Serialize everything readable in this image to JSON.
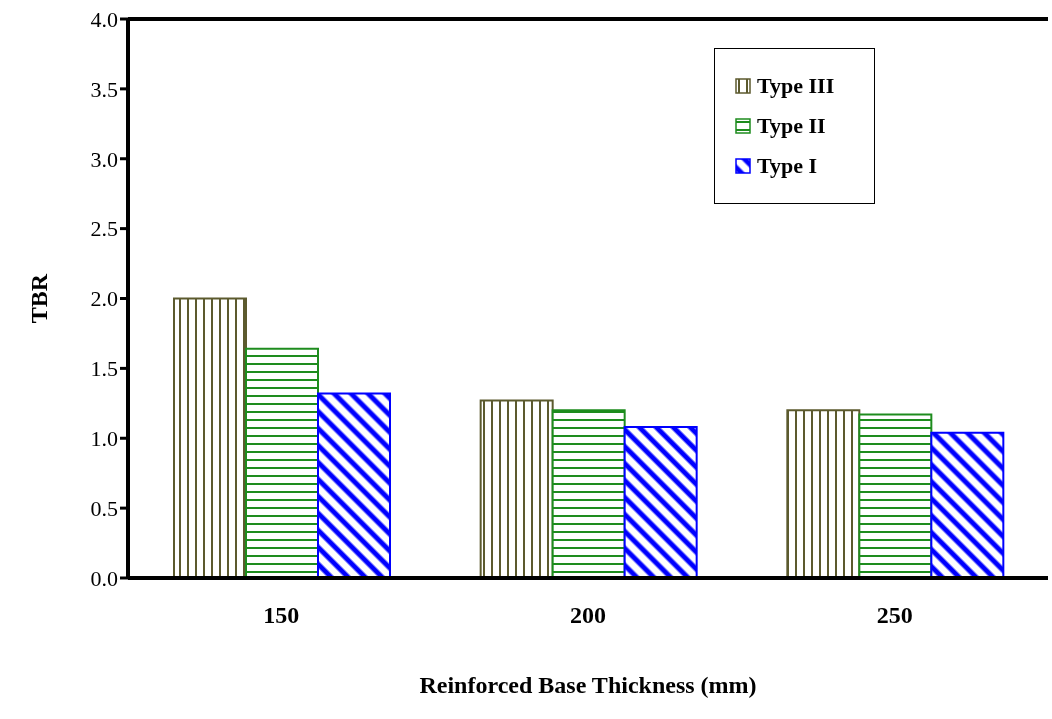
{
  "chart_data": {
    "type": "bar",
    "xlabel": "Reinforced Base Thickness (mm)",
    "ylabel": "TBR",
    "categories": [
      "150",
      "200",
      "250"
    ],
    "series": [
      {
        "name": "Type III",
        "color": "#5c5a2e",
        "values": [
          2.0,
          1.27,
          1.2
        ]
      },
      {
        "name": "Type II",
        "color": "#1e8c1e",
        "values": [
          1.64,
          1.2,
          1.17
        ]
      },
      {
        "name": "Type I",
        "color": "#0000ff",
        "values": [
          1.32,
          1.08,
          1.04
        ]
      }
    ],
    "ylim": [
      0,
      4
    ],
    "yticks": [
      {
        "value": 0,
        "label": "0.0"
      },
      0.5,
      {
        "value": 1,
        "label": "1.0"
      },
      1.5,
      {
        "value": 2,
        "label": "2.0"
      },
      2.5,
      {
        "value": 3,
        "label": "3.0"
      },
      3.5,
      {
        "value": 4,
        "label": "4.0"
      }
    ],
    "legend": "top right"
  }
}
